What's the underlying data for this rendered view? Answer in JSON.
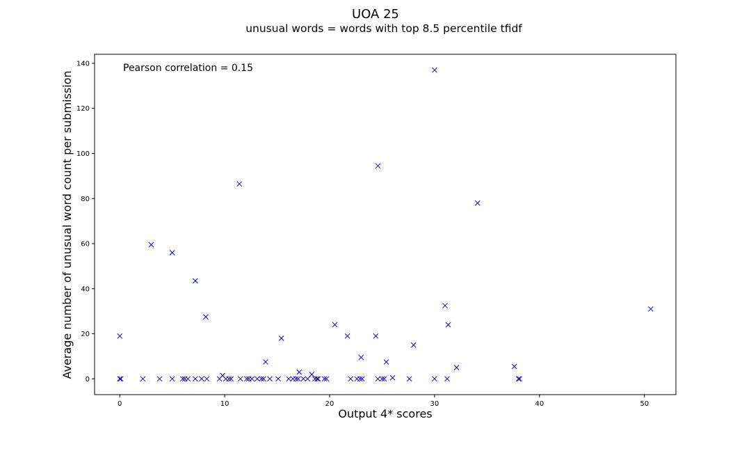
{
  "chart_data": {
    "type": "scatter",
    "title": "UOA 25",
    "subtitle": "unusual words = words with top 8.5 percentile tfidf",
    "xlabel": "Output 4* scores",
    "ylabel": "Average number of unusual word count per submission",
    "annotation": "Pearson correlation = 0.15",
    "xlim": [
      -2.4,
      53
    ],
    "ylim": [
      -7,
      144
    ],
    "xticks": [
      0,
      10,
      20,
      30,
      40,
      50
    ],
    "yticks": [
      0,
      20,
      40,
      60,
      80,
      100,
      120,
      140
    ],
    "marker": "x",
    "color": "#0000ff",
    "grid": false,
    "points": [
      [
        0.0,
        19
      ],
      [
        0.0,
        0
      ],
      [
        0.1,
        0
      ],
      [
        2.2,
        0
      ],
      [
        3.0,
        59.5
      ],
      [
        3.8,
        0
      ],
      [
        5.0,
        56
      ],
      [
        5.0,
        0
      ],
      [
        6.0,
        0
      ],
      [
        6.2,
        0
      ],
      [
        6.5,
        0
      ],
      [
        7.2,
        43.5
      ],
      [
        7.2,
        0
      ],
      [
        7.8,
        0
      ],
      [
        8.2,
        27.5
      ],
      [
        8.3,
        0
      ],
      [
        9.5,
        0
      ],
      [
        9.8,
        1.5
      ],
      [
        10.1,
        0
      ],
      [
        10.4,
        0
      ],
      [
        10.6,
        0
      ],
      [
        11.4,
        86.5
      ],
      [
        11.5,
        0
      ],
      [
        12.1,
        0
      ],
      [
        12.3,
        0
      ],
      [
        12.6,
        0
      ],
      [
        13.1,
        0
      ],
      [
        13.5,
        0
      ],
      [
        13.7,
        0
      ],
      [
        13.9,
        7.5
      ],
      [
        14.3,
        0
      ],
      [
        15.1,
        0
      ],
      [
        15.4,
        18
      ],
      [
        16.1,
        0
      ],
      [
        16.5,
        0
      ],
      [
        16.8,
        0
      ],
      [
        17.0,
        0
      ],
      [
        17.1,
        3
      ],
      [
        17.5,
        0
      ],
      [
        17.9,
        0
      ],
      [
        18.3,
        2
      ],
      [
        18.6,
        0
      ],
      [
        18.8,
        0
      ],
      [
        18.9,
        0
      ],
      [
        19.5,
        0
      ],
      [
        19.7,
        0
      ],
      [
        20.5,
        24
      ],
      [
        21.7,
        19
      ],
      [
        22.0,
        0
      ],
      [
        22.6,
        0
      ],
      [
        22.9,
        0
      ],
      [
        23.0,
        9.5
      ],
      [
        23.1,
        0
      ],
      [
        24.4,
        19
      ],
      [
        24.6,
        94.5
      ],
      [
        24.6,
        0
      ],
      [
        25.0,
        0
      ],
      [
        25.2,
        0
      ],
      [
        25.4,
        7.5
      ],
      [
        26.0,
        0.5
      ],
      [
        27.6,
        0
      ],
      [
        28.0,
        15
      ],
      [
        30.0,
        137
      ],
      [
        30.0,
        0
      ],
      [
        31.0,
        32.5
      ],
      [
        31.2,
        0
      ],
      [
        31.3,
        24
      ],
      [
        32.1,
        5
      ],
      [
        34.1,
        78
      ],
      [
        37.6,
        5.5
      ],
      [
        38.0,
        0
      ],
      [
        38.1,
        0
      ],
      [
        50.6,
        31
      ]
    ]
  }
}
